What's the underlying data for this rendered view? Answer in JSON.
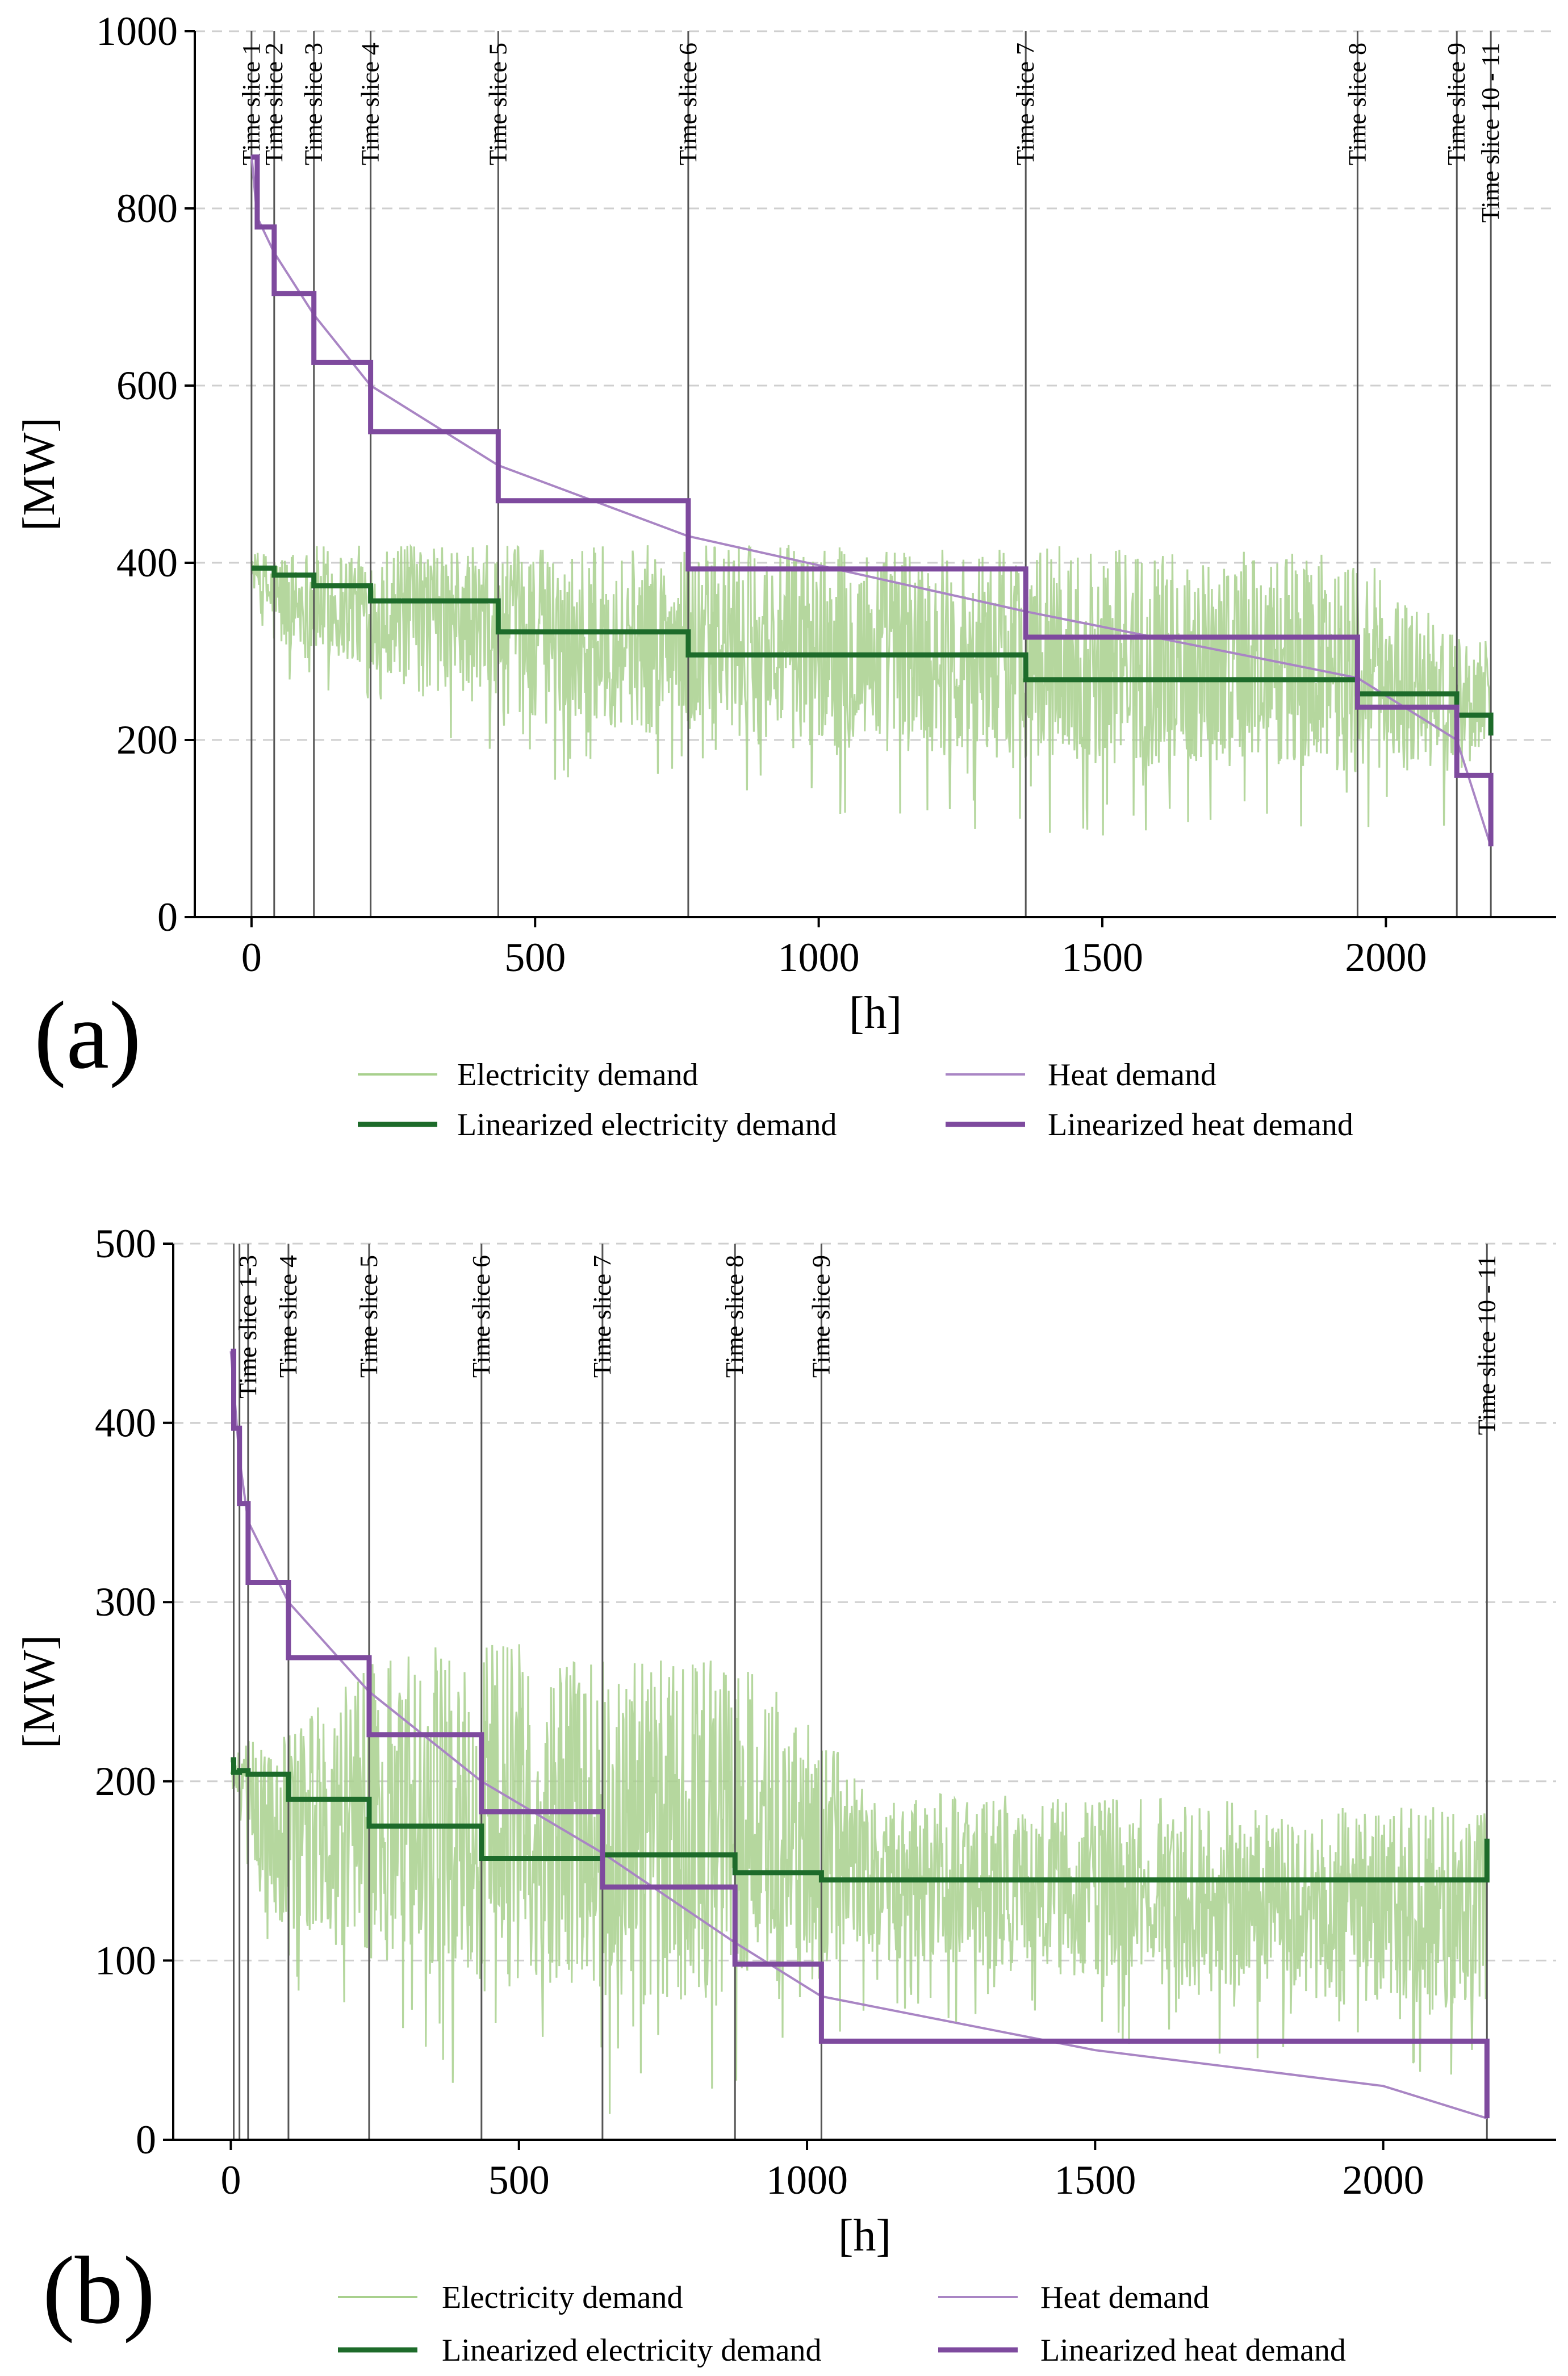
{
  "chart_data": [
    {
      "panel": "(a)",
      "type": "line",
      "xlabel": "[h]",
      "ylabel": "[MW]",
      "xlim": [
        -100,
        2300
      ],
      "ylim": [
        0,
        1000
      ],
      "xticks": [
        0,
        500,
        1000,
        1500,
        2000
      ],
      "yticks": [
        0,
        200,
        400,
        600,
        800,
        1000
      ],
      "grid": "horizontal dashed",
      "time_slices": [
        {
          "label": "Time slice 1",
          "x": 0
        },
        {
          "label": "Time slice 2",
          "x": 40
        },
        {
          "label": "Time slice 3",
          "x": 110
        },
        {
          "label": "Time slice 4",
          "x": 210
        },
        {
          "label": "Time slice 5",
          "x": 435
        },
        {
          "label": "Time slice 6",
          "x": 770
        },
        {
          "label": "Time slice 7",
          "x": 1365
        },
        {
          "label": "Time slice 8",
          "x": 1950
        },
        {
          "label": "Time slice 9",
          "x": 2125
        },
        {
          "label": "Time slice 10 - 11",
          "x": 2185
        }
      ],
      "series": [
        {
          "name": "Electricity demand",
          "kind": "noisy-band",
          "color": "#a8d08d",
          "envelope": {
            "x": [
              0,
              40,
              110,
              210,
              435,
              770,
              1365,
              1950,
              2125,
              2185
            ],
            "upper": [
              410,
              415,
              420,
              420,
              420,
              420,
              420,
              410,
              320,
              320
            ],
            "lower": [
              390,
              300,
              290,
              280,
              230,
              200,
              175,
              165,
              160,
              200
            ]
          }
        },
        {
          "name": "Linearized electricity demand",
          "kind": "step",
          "color": "#1d6b2a",
          "x": [
            0,
            40,
            110,
            210,
            435,
            770,
            1365,
            1950,
            2125,
            2185
          ],
          "values": [
            394,
            386,
            374,
            357,
            322,
            296,
            268,
            252,
            228,
            205
          ]
        },
        {
          "name": "Heat demand",
          "kind": "line",
          "color": "#a985c4",
          "x": [
            0,
            10,
            40,
            110,
            210,
            435,
            770,
            1365,
            1950,
            2125,
            2185
          ],
          "values": [
            860,
            790,
            750,
            680,
            600,
            510,
            430,
            345,
            270,
            200,
            80
          ]
        },
        {
          "name": "Linearized heat demand",
          "kind": "step",
          "color": "#7e4a9e",
          "x": [
            0,
            10,
            40,
            110,
            210,
            435,
            770,
            1365,
            1950,
            2125,
            2185
          ],
          "values": [
            858,
            779,
            704,
            626,
            548,
            470,
            393,
            316,
            237,
            160,
            80
          ]
        }
      ],
      "legend": [
        "Electricity demand",
        "Heat demand",
        "Linearized electricity demand",
        "Linearized heat demand"
      ]
    },
    {
      "panel": "(b)",
      "type": "line",
      "xlabel": "[h]",
      "ylabel": "[MW]",
      "xlim": [
        -100,
        2300
      ],
      "ylim": [
        0,
        500
      ],
      "xticks": [
        0,
        500,
        1000,
        1500,
        2000
      ],
      "yticks": [
        0,
        100,
        200,
        300,
        400,
        500
      ],
      "grid": "horizontal dashed",
      "time_slices": [
        {
          "label": "",
          "x": 5
        },
        {
          "label": "",
          "x": 15
        },
        {
          "label": "Time slice 1-3",
          "x": 30
        },
        {
          "label": "Time slice 4",
          "x": 100
        },
        {
          "label": "Time slice 5",
          "x": 240
        },
        {
          "label": "Time slice 6",
          "x": 435
        },
        {
          "label": "Time slice 7",
          "x": 645
        },
        {
          "label": "Time slice 8",
          "x": 875
        },
        {
          "label": "Time slice 9",
          "x": 1025
        },
        {
          "label": "Time slice 10 - 11",
          "x": 2180
        }
      ],
      "series": [
        {
          "name": "Electricity demand",
          "kind": "noisy-band",
          "color": "#a8d08d",
          "envelope": {
            "x": [
              0,
              30,
              100,
              240,
              435,
              645,
              875,
              1025,
              1100,
              2180
            ],
            "upper": [
              210,
              225,
              225,
              270,
              280,
              270,
              270,
              230,
              195,
              185
            ],
            "lower": [
              200,
              150,
              110,
              100,
              85,
              80,
              75,
              80,
              100,
              70
            ]
          }
        },
        {
          "name": "Linearized electricity demand",
          "kind": "step",
          "color": "#1d6b2a",
          "x": [
            0,
            5,
            15,
            30,
            100,
            240,
            435,
            645,
            875,
            1025,
            2180
          ],
          "values": [
            212,
            205,
            206,
            204,
            190,
            175,
            157,
            159,
            149,
            145,
            168
          ]
        },
        {
          "name": "Heat demand",
          "kind": "line",
          "color": "#a985c4",
          "x": [
            0,
            15,
            30,
            100,
            240,
            435,
            645,
            875,
            1025,
            1500,
            2000,
            2180
          ],
          "values": [
            440,
            380,
            345,
            300,
            250,
            200,
            160,
            110,
            80,
            50,
            30,
            12
          ]
        },
        {
          "name": "Linearized heat demand",
          "kind": "step",
          "color": "#7e4a9e",
          "x": [
            0,
            5,
            15,
            30,
            100,
            240,
            435,
            645,
            875,
            1025,
            2180
          ],
          "values": [
            440,
            397,
            355,
            311,
            269,
            226,
            183,
            141,
            98,
            55,
            12
          ]
        }
      ],
      "legend": [
        "Electricity demand",
        "Heat demand",
        "Linearized electricity demand",
        "Linearized heat demand"
      ]
    }
  ]
}
